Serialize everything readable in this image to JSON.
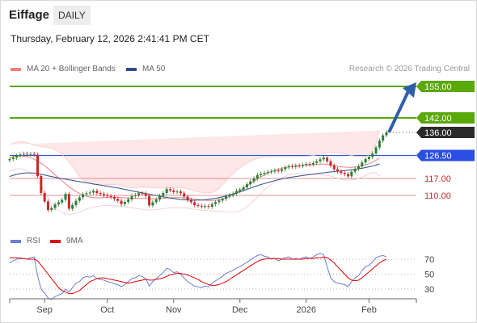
{
  "header": {
    "title": "Eiffage",
    "timeframe": "DAILY",
    "datetime": "Thursday, February 12, 2026 2:41:41 PM CET"
  },
  "legend": {
    "ma20": "MA 20 + Bollinger Bands",
    "ma50": "MA 50",
    "rsi": "RSI",
    "ma9": "9MA"
  },
  "credit": "Research © 2026 Trading Central",
  "colors": {
    "resistance": "#5aa80a",
    "support": "#e06070",
    "pivot": "#2a4ee0",
    "candle_up": "#2e7d32",
    "candle_down": "#c62828",
    "rsi": "#6a7fd6",
    "ma9": "#e00000",
    "ma50": "#2f4d8c",
    "band": "#fde3e3"
  },
  "chart_data": [
    {
      "type": "candlestick",
      "x_ticks": [
        "Sep",
        "Oct",
        "Nov",
        "Dec",
        "2026",
        "Feb"
      ],
      "ylim": [
        94,
        164
      ],
      "close": [
        125.0,
        125.6,
        126.3,
        126.9,
        127.2,
        127.0,
        127.1,
        126.8,
        118.0,
        111.0,
        107.5,
        104.0,
        104.8,
        106.3,
        107.1,
        108.2,
        110.6,
        104.5,
        106.0,
        107.8,
        109.2,
        110.5,
        110.9,
        111.2,
        111.9,
        111.0,
        110.6,
        110.1,
        109.7,
        109.3,
        108.6,
        107.8,
        106.4,
        107.3,
        108.4,
        109.7,
        110.1,
        110.9,
        110.8,
        109.8,
        105.9,
        107.2,
        108.3,
        109.8,
        111.0,
        112.6,
        112.1,
        111.4,
        111.6,
        110.9,
        109.5,
        108.1,
        107.2,
        106.0,
        105.7,
        105.4,
        105.6,
        105.3,
        106.4,
        107.2,
        107.9,
        108.6,
        109.6,
        110.1,
        110.7,
        111.8,
        112.4,
        113.3,
        114.6,
        115.8,
        117.0,
        118.4,
        118.9,
        119.3,
        119.7,
        119.9,
        120.3,
        120.1,
        120.8,
        121.6,
        122.1,
        121.8,
        122.3,
        122.1,
        122.6,
        123.0,
        122.8,
        123.4,
        124.1,
        124.9,
        125.6,
        124.1,
        122.3,
        120.8,
        119.9,
        119.3,
        118.8,
        117.9,
        119.8,
        121.0,
        122.0,
        123.6,
        125.0,
        125.9,
        127.3,
        129.8,
        132.6,
        134.8,
        136.0
      ],
      "ma20": [
        125.6,
        126.0,
        126.2,
        126.3,
        126.2,
        126.0,
        125.6,
        124.9,
        124.2,
        123.3,
        122.3,
        121.1,
        119.8,
        118.5,
        117.2,
        116.0,
        114.8,
        113.6,
        112.6,
        111.6,
        110.8,
        110.2,
        109.7,
        109.3,
        109.1,
        109.0,
        109.0,
        109.1,
        109.2,
        109.3,
        109.3,
        109.2,
        109.1,
        109.0,
        108.9,
        108.8,
        108.8,
        108.8,
        108.7,
        108.7,
        108.6,
        108.6,
        108.6,
        108.7,
        108.8,
        108.9,
        109.0,
        109.1,
        109.1,
        109.1,
        109.0,
        108.9,
        108.7,
        108.5,
        108.3,
        108.1,
        108.0,
        107.9,
        107.9,
        108.0,
        108.2,
        108.5,
        108.9,
        109.5,
        110.2,
        111.0,
        111.9,
        112.9,
        113.9,
        114.9,
        115.9,
        116.8,
        117.7,
        118.5,
        119.2,
        119.8,
        120.3,
        120.8,
        121.2,
        121.5,
        121.8,
        122.0,
        122.2,
        122.3,
        122.4,
        122.5,
        122.6,
        122.7,
        122.8,
        122.9,
        122.9,
        122.8,
        122.6,
        122.4,
        122.1,
        121.8,
        121.7,
        121.6,
        121.6,
        121.7,
        121.9,
        122.2,
        122.6,
        123.1,
        123.7,
        124.5,
        125.5
      ],
      "bb_upper": [
        131.0,
        131.6,
        132.0,
        132.2,
        132.1,
        131.8,
        131.3,
        130.8,
        130.4,
        130.2,
        130.0,
        129.8,
        129.4,
        128.9,
        128.1,
        127.0,
        125.5,
        123.8,
        121.9,
        119.9,
        117.8,
        116.3,
        115.4,
        114.9,
        114.6,
        114.4,
        114.3,
        114.3,
        114.4,
        114.5,
        114.5,
        114.3,
        114.0,
        113.6,
        113.3,
        113.2,
        113.2,
        113.3,
        113.4,
        113.4,
        113.3,
        113.2,
        113.1,
        113.0,
        113.0,
        113.0,
        113.1,
        113.2,
        113.3,
        113.2,
        113.0,
        112.7,
        112.3,
        111.9,
        111.5,
        111.2,
        111.0,
        111.0,
        111.2,
        111.8,
        112.8,
        114.3,
        116.0,
        117.6,
        119.0,
        120.3,
        121.4,
        122.4,
        123.3,
        124.1,
        124.8,
        125.3,
        125.6,
        125.8,
        125.9,
        126.0,
        126.0,
        126.0,
        126.0,
        126.0,
        126.0,
        126.0,
        126.0,
        126.0,
        126.1,
        126.2,
        126.3,
        126.5,
        126.8,
        127.1,
        127.4,
        127.6,
        127.7,
        127.7,
        127.6,
        127.4,
        127.1,
        126.8,
        126.5,
        126.2,
        126.0,
        125.9,
        126.0,
        126.5,
        128.2,
        131.5,
        136.8
      ],
      "bb_lower": [
        120.0,
        120.6,
        121.0,
        121.0,
        120.8,
        120.2,
        119.2,
        117.8,
        116.0,
        113.8,
        111.5,
        109.2,
        107.0,
        105.2,
        103.8,
        102.9,
        102.4,
        102.2,
        102.3,
        102.6,
        103.1,
        103.7,
        104.3,
        104.8,
        105.2,
        105.5,
        105.7,
        105.8,
        105.8,
        105.8,
        105.7,
        105.6,
        105.5,
        105.3,
        105.1,
        104.9,
        104.7,
        104.5,
        104.3,
        104.1,
        104.0,
        104.0,
        104.1,
        104.3,
        104.5,
        104.7,
        104.8,
        104.9,
        104.9,
        104.9,
        104.8,
        104.7,
        104.5,
        104.3,
        104.1,
        103.9,
        103.8,
        103.7,
        103.6,
        103.5,
        103.5,
        103.4,
        103.3,
        103.2,
        103.2,
        103.3,
        103.7,
        104.4,
        105.3,
        106.5,
        107.9,
        109.4,
        110.8,
        112.2,
        113.5,
        114.6,
        115.6,
        116.5,
        117.3,
        117.9,
        118.4,
        118.7,
        118.9,
        119.0,
        119.0,
        118.9,
        118.8,
        118.7,
        118.6,
        118.5,
        118.4,
        118.3,
        118.0,
        117.6,
        117.1,
        116.6,
        116.4,
        116.3,
        116.4,
        116.6,
        117.0,
        117.6,
        118.2,
        118.9,
        119.4,
        119.2,
        118.0
      ],
      "ma50": [
        117.8,
        118.3,
        118.7,
        119.0,
        119.2,
        119.3,
        119.3,
        119.2,
        119.0,
        118.7,
        118.4,
        118.1,
        117.8,
        117.5,
        117.2,
        116.9,
        116.7,
        116.4,
        116.2,
        115.9,
        115.7,
        115.4,
        115.2,
        115.0,
        114.7,
        114.5,
        114.3,
        114.0,
        113.8,
        113.6,
        113.3,
        113.1,
        112.8,
        112.5,
        112.2,
        111.9,
        111.6,
        111.3,
        111.1,
        110.8,
        110.5,
        110.2,
        110.0,
        109.7,
        109.4,
        109.2,
        108.9,
        108.7,
        108.5,
        108.3,
        108.2,
        108.1,
        108.1,
        108.0,
        108.1,
        108.1,
        108.2,
        108.4,
        108.6,
        108.8,
        109.1,
        109.4,
        109.8,
        110.2,
        110.6,
        111.1,
        111.5,
        112.0,
        112.5,
        113.0,
        113.5,
        114.0,
        114.5,
        114.9,
        115.3,
        115.7,
        116.1,
        116.5,
        116.8,
        117.1,
        117.4,
        117.6,
        117.8,
        118.0,
        118.2,
        118.4,
        118.6,
        118.8,
        119.0,
        119.2,
        119.3,
        119.5,
        119.7,
        119.8,
        120.0,
        120.1,
        120.3,
        120.4,
        120.6,
        120.8,
        121.0,
        121.2,
        121.5,
        121.8,
        122.1,
        122.5,
        123.0
      ],
      "levels": [
        {
          "label": "155.00",
          "value": 155.0,
          "kind": "resistance"
        },
        {
          "label": "142.00",
          "value": 142.0,
          "kind": "resistance"
        },
        {
          "label": "136.00",
          "value": 136.0,
          "kind": "last"
        },
        {
          "label": "126.50",
          "value": 126.5,
          "kind": "pivot"
        },
        {
          "label": "117.00",
          "value": 117.0,
          "kind": "support"
        },
        {
          "label": "110.00",
          "value": 110.0,
          "kind": "support"
        }
      ],
      "projection": {
        "from": 136.0,
        "to": 155.0
      }
    },
    {
      "type": "line",
      "y_ticks": [
        70,
        50,
        30
      ],
      "ylim": [
        10,
        80
      ],
      "series": [
        {
          "name": "RSI",
          "values": [
            65,
            68,
            70,
            72,
            71,
            70,
            72,
            73,
            48,
            30,
            25,
            18,
            16,
            20,
            22,
            24,
            30,
            26,
            32,
            38,
            40,
            45,
            47,
            46,
            48,
            44,
            43,
            42,
            40,
            39,
            37,
            36,
            33,
            36,
            40,
            44,
            45,
            48,
            47,
            44,
            34,
            40,
            44,
            48,
            52,
            58,
            56,
            52,
            53,
            50,
            45,
            40,
            37,
            34,
            33,
            32,
            34,
            33,
            38,
            41,
            44,
            47,
            51,
            53,
            55,
            58,
            60,
            63,
            66,
            69,
            72,
            75,
            76,
            74,
            73,
            70,
            71,
            68,
            70,
            72,
            73,
            70,
            71,
            70,
            72,
            73,
            71,
            73,
            76,
            78,
            76,
            60,
            45,
            40,
            38,
            37,
            36,
            33,
            40,
            45,
            48,
            55,
            60,
            62,
            66,
            72,
            74,
            75,
            73
          ]
        },
        {
          "name": "9MA",
          "values": [
            72,
            72,
            72,
            71,
            71,
            70,
            70,
            70,
            68,
            62,
            56,
            50,
            44,
            38,
            32,
            28,
            26,
            24,
            24,
            26,
            28,
            32,
            36,
            40,
            42,
            44,
            45,
            45,
            44,
            43,
            42,
            41,
            40,
            39,
            38,
            39,
            40,
            41,
            42,
            43,
            42,
            42,
            43,
            44,
            45,
            47,
            49,
            50,
            51,
            51,
            50,
            49,
            47,
            45,
            43,
            40,
            38,
            36,
            35,
            35,
            36,
            38,
            40,
            43,
            46,
            49,
            52,
            55,
            58,
            61,
            64,
            67,
            69,
            70,
            71,
            71,
            71,
            71,
            70,
            70,
            70,
            70,
            70,
            70,
            70,
            71,
            71,
            71,
            72,
            72,
            73,
            72,
            69,
            65,
            60,
            55,
            50,
            45,
            42,
            41,
            42,
            45,
            49,
            53,
            57,
            61,
            65,
            68,
            70
          ]
        }
      ]
    }
  ]
}
